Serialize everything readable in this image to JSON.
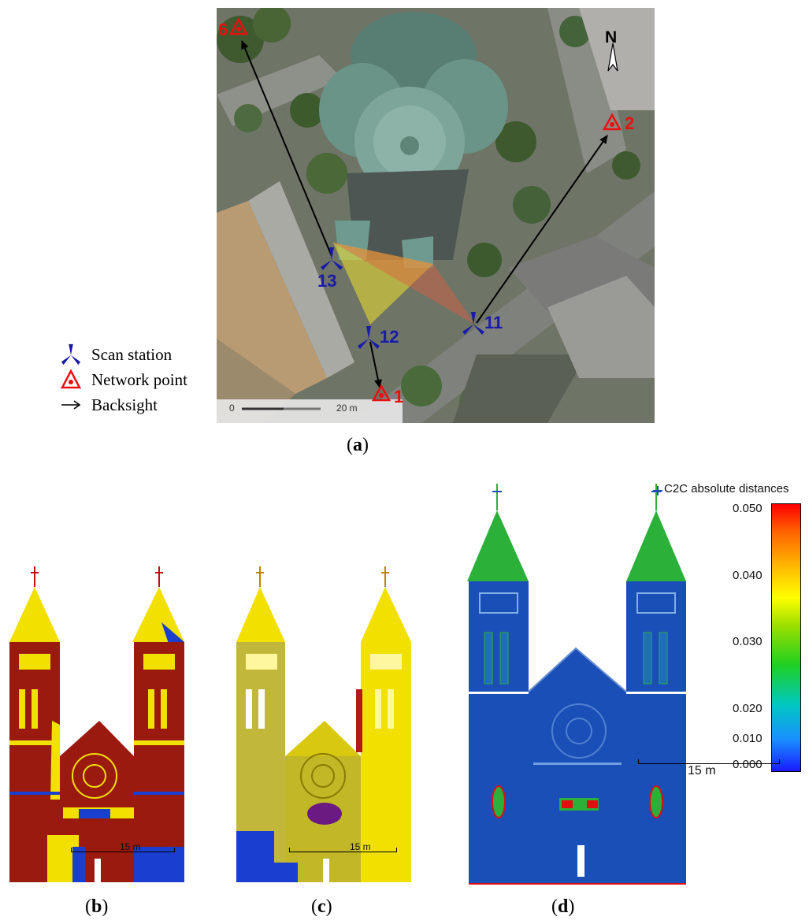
{
  "figure": {
    "panel_a": {
      "legend": {
        "scan_station": "Scan station",
        "network_point": "Network point",
        "backsight": "Backsight"
      },
      "stations": [
        "13",
        "12",
        "11"
      ],
      "network_points": [
        "6",
        "2",
        "1"
      ],
      "north": "N",
      "scalebar": {
        "start": "0",
        "end": "20 m"
      },
      "caption": {
        "open": "(",
        "letter": "a",
        "close": ")"
      }
    },
    "panel_b": {
      "scalebar": "15 m",
      "caption": {
        "open": "(",
        "letter": "b",
        "close": ")"
      }
    },
    "panel_c": {
      "scalebar": "15 m",
      "caption": {
        "open": "(",
        "letter": "c",
        "close": ")"
      }
    },
    "panel_d": {
      "colorbar_title": "C2C absolute distances",
      "colorbar_ticks": [
        "0.050",
        "0.040",
        "0.030",
        "0.020",
        "0.010",
        "0.000"
      ],
      "scalebar": "15 m",
      "caption": {
        "open": "(",
        "letter": "d",
        "close": ")"
      }
    },
    "colors": {
      "station_blue": "#1a1aa8",
      "network_red": "#e81010",
      "arrow": "#000000",
      "roof_green": "#6f9a8c",
      "cloud_red": "#9b1a0f",
      "cloud_yellow": "#f2e000",
      "cloud_blue": "#1a3fd0",
      "c2c_blue": "#1b4fb8",
      "c2c_green": "#2bb03a"
    }
  }
}
